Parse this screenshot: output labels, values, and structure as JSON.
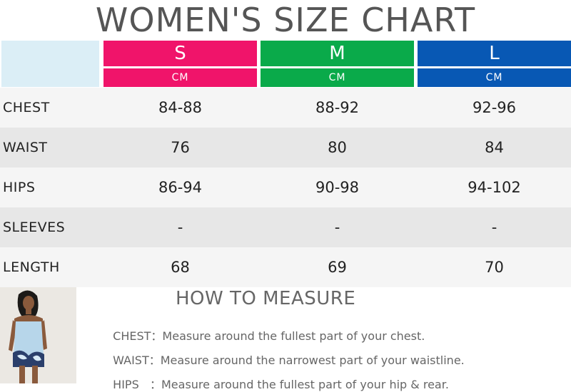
{
  "title": "WOMEN'S SIZE CHART",
  "sizes": [
    {
      "label": "S",
      "unit": "CM",
      "color": "#f0146a"
    },
    {
      "label": "M",
      "unit": "CM",
      "color": "#0aaa4a"
    },
    {
      "label": "L",
      "unit": "CM",
      "color": "#0858b4"
    }
  ],
  "rows": [
    {
      "label": "CHEST",
      "values": [
        "84-88",
        "88-92",
        "92-96"
      ]
    },
    {
      "label": "WAIST",
      "values": [
        "76",
        "80",
        "84"
      ]
    },
    {
      "label": "HIPS",
      "values": [
        "86-94",
        "90-98",
        "94-102"
      ]
    },
    {
      "label": "SLEEVES",
      "values": [
        "-",
        "-",
        "-"
      ]
    },
    {
      "label": "LENGTH",
      "values": [
        "68",
        "69",
        "70"
      ]
    }
  ],
  "row_colors": [
    "#f5f5f5",
    "#e7e7e7"
  ],
  "how_to_measure": {
    "title": "HOW TO MEASURE",
    "items": [
      {
        "key": "CHEST：",
        "text": "Measure around the fullest part of your chest."
      },
      {
        "key": "WAIST：",
        "text": "Measure around the narrowest part of your waistline."
      },
      {
        "key": "HIPS   ：",
        "text": "Measure around the fullest part of your hip & rear."
      }
    ]
  }
}
